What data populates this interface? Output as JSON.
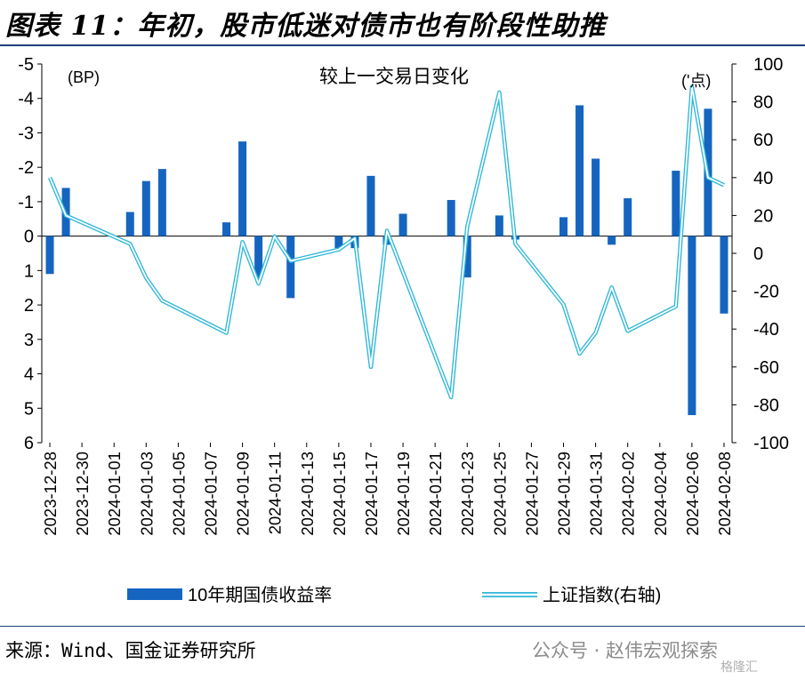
{
  "title": "图表 11：年初，股市低迷对债市也有阶段性助推",
  "source": "来源：Wind、国金证券研究所",
  "watermark": "公众号 · 赵伟宏观探索",
  "watermark2": "格隆汇",
  "chart_data": {
    "type": "bar+line",
    "title": "较上一交易日变化",
    "left_axis_unit": "(BP)",
    "right_axis_unit": "('点)",
    "left_axis": {
      "ylim": [
        6,
        -5
      ],
      "inverted": true,
      "ticks": [
        -5,
        -4,
        -3,
        -2,
        -1,
        0,
        1,
        2,
        3,
        4,
        5,
        6
      ]
    },
    "right_axis": {
      "ylim": [
        -100,
        100
      ],
      "ticks": [
        100,
        80,
        60,
        40,
        20,
        0,
        -20,
        -40,
        -60,
        -80,
        -100
      ]
    },
    "grid": false,
    "legend_position": "bottom",
    "dates": [
      "2023-12-28",
      "2023-12-29",
      "2023-12-30",
      "2023-12-31",
      "2024-01-01",
      "2024-01-02",
      "2024-01-03",
      "2024-01-04",
      "2024-01-05",
      "2024-01-06",
      "2024-01-07",
      "2024-01-08",
      "2024-01-09",
      "2024-01-10",
      "2024-01-11",
      "2024-01-12",
      "2024-01-13",
      "2024-01-14",
      "2024-01-15",
      "2024-01-16",
      "2024-01-17",
      "2024-01-18",
      "2024-01-19",
      "2024-01-20",
      "2024-01-21",
      "2024-01-22",
      "2024-01-23",
      "2024-01-24",
      "2024-01-25",
      "2024-01-26",
      "2024-01-27",
      "2024-01-28",
      "2024-01-29",
      "2024-01-30",
      "2024-01-31",
      "2024-02-01",
      "2024-02-02",
      "2024-02-03",
      "2024-02-04",
      "2024-02-05",
      "2024-02-06",
      "2024-02-07",
      "2024-02-08"
    ],
    "tick_labels": [
      "2023-12-28",
      "2023-12-30",
      "2024-01-01",
      "2024-01-03",
      "2024-01-05",
      "2024-01-07",
      "2024-01-09",
      "2024-01-11",
      "2024-01-13",
      "2024-01-15",
      "2024-01-17",
      "2024-01-19",
      "2024-01-21",
      "2024-01-23",
      "2024-01-25",
      "2024-01-27",
      "2024-01-29",
      "2024-01-31",
      "2024-02-02",
      "2024-02-04",
      "2024-02-06",
      "2024-02-08"
    ],
    "series": [
      {
        "name": "10年期国债收益率",
        "axis": "left",
        "type": "bar",
        "color": "#1565c0",
        "points": [
          {
            "date": "2023-12-28",
            "value": 1.1
          },
          {
            "date": "2023-12-29",
            "value": -1.4
          },
          {
            "date": "2024-01-02",
            "value": -0.7
          },
          {
            "date": "2024-01-03",
            "value": -1.6
          },
          {
            "date": "2024-01-04",
            "value": -1.95
          },
          {
            "date": "2024-01-08",
            "value": -0.4
          },
          {
            "date": "2024-01-09",
            "value": -2.75
          },
          {
            "date": "2024-01-10",
            "value": 1.2
          },
          {
            "date": "2024-01-12",
            "value": 1.8
          },
          {
            "date": "2024-01-15",
            "value": 0.35
          },
          {
            "date": "2024-01-16",
            "value": 0.35
          },
          {
            "date": "2024-01-17",
            "value": -1.75
          },
          {
            "date": "2024-01-18",
            "value": 0.25
          },
          {
            "date": "2024-01-19",
            "value": -0.65
          },
          {
            "date": "2024-01-22",
            "value": -1.05
          },
          {
            "date": "2024-01-23",
            "value": 1.2
          },
          {
            "date": "2024-01-25",
            "value": -0.6
          },
          {
            "date": "2024-01-26",
            "value": 0.1
          },
          {
            "date": "2024-01-29",
            "value": -0.55
          },
          {
            "date": "2024-01-30",
            "value": -3.8
          },
          {
            "date": "2024-01-31",
            "value": -2.25
          },
          {
            "date": "2024-02-01",
            "value": 0.25
          },
          {
            "date": "2024-02-02",
            "value": -1.1
          },
          {
            "date": "2024-02-05",
            "value": -1.9
          },
          {
            "date": "2024-02-06",
            "value": 5.2
          },
          {
            "date": "2024-02-07",
            "value": -3.7
          },
          {
            "date": "2024-02-08",
            "value": 2.25
          }
        ]
      },
      {
        "name": "上证指数(右轴)",
        "axis": "right",
        "type": "line",
        "color": "#2fb7d8",
        "points": [
          {
            "date": "2023-12-28",
            "value": 40
          },
          {
            "date": "2023-12-29",
            "value": 20
          },
          {
            "date": "2024-01-02",
            "value": 5
          },
          {
            "date": "2024-01-03",
            "value": -13
          },
          {
            "date": "2024-01-04",
            "value": -25
          },
          {
            "date": "2024-01-08",
            "value": -42
          },
          {
            "date": "2024-01-09",
            "value": 6
          },
          {
            "date": "2024-01-10",
            "value": -16
          },
          {
            "date": "2024-01-11",
            "value": 9
          },
          {
            "date": "2024-01-12",
            "value": -4
          },
          {
            "date": "2024-01-15",
            "value": 2
          },
          {
            "date": "2024-01-16",
            "value": 8
          },
          {
            "date": "2024-01-17",
            "value": -60
          },
          {
            "date": "2024-01-18",
            "value": 12
          },
          {
            "date": "2024-01-22",
            "value": -76
          },
          {
            "date": "2024-01-23",
            "value": 14
          },
          {
            "date": "2024-01-25",
            "value": 85
          },
          {
            "date": "2024-01-26",
            "value": 5
          },
          {
            "date": "2024-01-29",
            "value": -27
          },
          {
            "date": "2024-01-30",
            "value": -53
          },
          {
            "date": "2024-01-31",
            "value": -42
          },
          {
            "date": "2024-02-01",
            "value": -18
          },
          {
            "date": "2024-02-02",
            "value": -41
          },
          {
            "date": "2024-02-05",
            "value": -28
          },
          {
            "date": "2024-02-06",
            "value": 88
          },
          {
            "date": "2024-02-07",
            "value": 40
          },
          {
            "date": "2024-02-08",
            "value": 36
          }
        ]
      }
    ]
  }
}
